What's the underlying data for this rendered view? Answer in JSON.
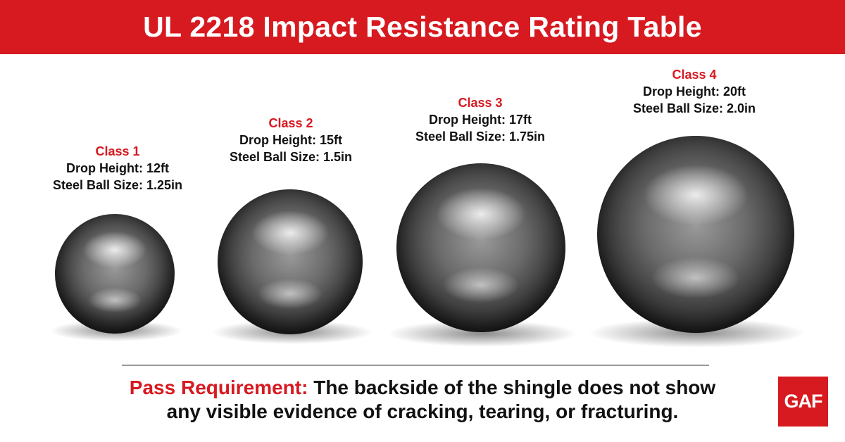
{
  "title": "UL 2218 Impact Resistance Rating Table",
  "classes": [
    {
      "name": "Class 1",
      "drop_height": "Drop Height: 12ft",
      "ball_size": "Steel Ball Size: 1.25in"
    },
    {
      "name": "Class 2",
      "drop_height": "Drop Height: 15ft",
      "ball_size": "Steel Ball Size: 1.5in"
    },
    {
      "name": "Class 3",
      "drop_height": "Drop Height: 17ft",
      "ball_size": "Steel Ball Size: 1.75in"
    },
    {
      "name": "Class 4",
      "drop_height": "Drop Height: 20ft",
      "ball_size": "Steel Ball Size: 2.0in"
    }
  ],
  "pass": {
    "label": "Pass Requirement:",
    "text_line1": " The backside of the shingle does not show",
    "text_line2": "any visible evidence of cracking, tearing, or fracturing."
  },
  "logo": "GAF",
  "colors": {
    "brand_red": "#d71920"
  }
}
